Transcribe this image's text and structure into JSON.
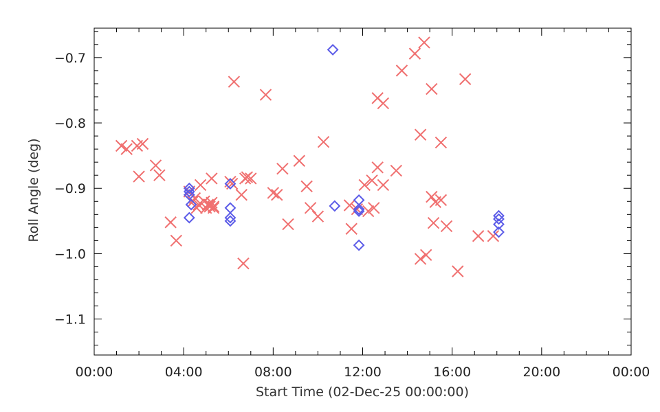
{
  "chart_data": {
    "type": "scatter",
    "title": "",
    "xlabel": "Start Time (02-Dec-25 00:00:00)",
    "ylabel": "Roll Angle (deg)",
    "xlim": [
      "00:00",
      "24:00"
    ],
    "ylim": [
      -1.155,
      -0.655
    ],
    "x_ticks": [
      "00:00",
      "04:00",
      "08:00",
      "12:00",
      "16:00",
      "20:00",
      "00:00"
    ],
    "y_ticks": [
      "-0.7",
      "-0.8",
      "-0.9",
      "-1.0",
      "-1.1"
    ],
    "grid": false,
    "legend": "none",
    "series": [
      {
        "marker": "x",
        "color": "#f07070",
        "x": [
          "01:13",
          "01:27",
          "01:55",
          "02:10",
          "02:00",
          "02:45",
          "02:55",
          "03:25",
          "03:40",
          "04:15",
          "04:25",
          "04:35",
          "04:30",
          "04:45",
          "04:40",
          "04:55",
          "05:00",
          "05:05",
          "05:10",
          "05:15",
          "05:15",
          "05:20",
          "05:10",
          "05:20",
          "06:05",
          "06:15",
          "06:10",
          "06:35",
          "06:40",
          "06:45",
          "06:50",
          "07:00",
          "07:40",
          "08:00",
          "08:10",
          "08:25",
          "08:40",
          "09:10",
          "09:30",
          "09:40",
          "10:00",
          "10:15",
          "11:25",
          "11:30",
          "11:45",
          "12:05",
          "12:15",
          "12:25",
          "12:30",
          "12:40",
          "12:40",
          "12:55",
          "12:55",
          "13:30",
          "13:45",
          "14:20",
          "14:35",
          "14:35",
          "14:45",
          "14:50",
          "15:05",
          "15:05",
          "15:10",
          "15:15",
          "15:30",
          "15:30",
          "15:45",
          "16:15",
          "16:35",
          "17:10",
          "17:50"
        ],
        "y": [
          -0.835,
          -0.84,
          -0.835,
          -0.832,
          -0.882,
          -0.865,
          -0.88,
          -0.952,
          -0.98,
          -0.905,
          -0.92,
          -0.93,
          -0.915,
          -0.895,
          -0.925,
          -0.92,
          -0.93,
          -0.925,
          -0.928,
          -0.922,
          -0.885,
          -0.928,
          -0.925,
          -0.93,
          -0.89,
          -0.737,
          -0.893,
          -0.91,
          -1.015,
          -0.885,
          -0.883,
          -0.885,
          -0.757,
          -0.907,
          -0.91,
          -0.87,
          -0.955,
          -0.858,
          -0.897,
          -0.93,
          -0.943,
          -0.829,
          -0.926,
          -0.962,
          -0.932,
          -0.895,
          -0.935,
          -0.888,
          -0.93,
          -0.868,
          -0.762,
          -0.895,
          -0.77,
          -0.873,
          -0.72,
          -0.694,
          -0.818,
          -1.008,
          -0.677,
          -1.002,
          -0.913,
          -0.748,
          -0.953,
          -0.921,
          -0.83,
          -0.918,
          -0.958,
          -1.027,
          -0.733,
          -0.973,
          -0.973
        ]
      },
      {
        "marker": "diamond",
        "color": "#5b5be8",
        "x": [
          "04:15",
          "04:15",
          "04:20",
          "04:15",
          "04:15",
          "06:05",
          "06:05",
          "06:05",
          "06:05",
          "10:40",
          "10:45",
          "11:50",
          "11:50",
          "11:50",
          "11:50",
          "18:05",
          "18:05",
          "18:05",
          "18:05"
        ],
        "y": [
          -0.905,
          -0.91,
          -0.925,
          -0.945,
          -0.9,
          -0.893,
          -0.93,
          -0.945,
          -0.95,
          -0.688,
          -0.927,
          -0.918,
          -0.932,
          -0.935,
          -0.987,
          -0.942,
          -0.947,
          -0.955,
          -0.967
        ]
      }
    ]
  }
}
